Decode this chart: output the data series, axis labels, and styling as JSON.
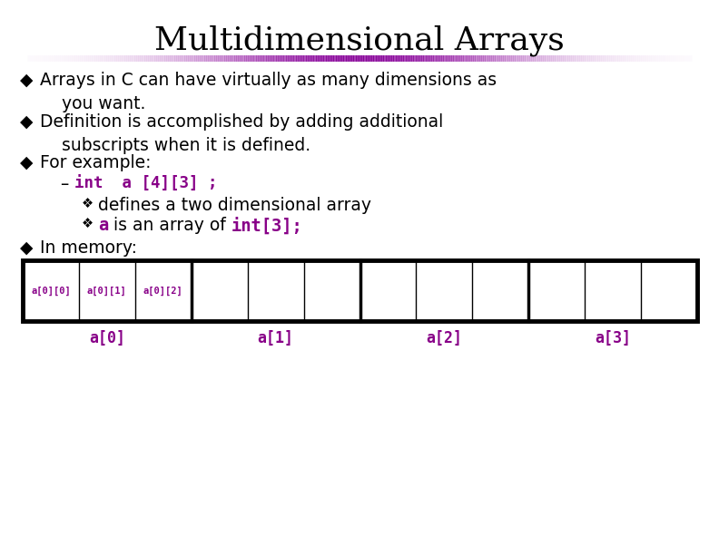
{
  "title": "Multidimensional Arrays",
  "title_fontsize": 26,
  "title_font": "serif",
  "title_color": "#000000",
  "bg_color": "#ffffff",
  "bullet_color": "#000000",
  "bullet_symbol": "◆",
  "sub_dash": "–",
  "sub_diamond": "❖",
  "purple": "#880088",
  "body_fontsize": 13.5,
  "code_fontsize": 12.5,
  "array_labels_top": [
    "a[0][0]",
    "a[0][1]",
    "a[0][2]"
  ],
  "array_group_labels": [
    "a[0]",
    "a[1]",
    "a[2]",
    "a[3]"
  ]
}
